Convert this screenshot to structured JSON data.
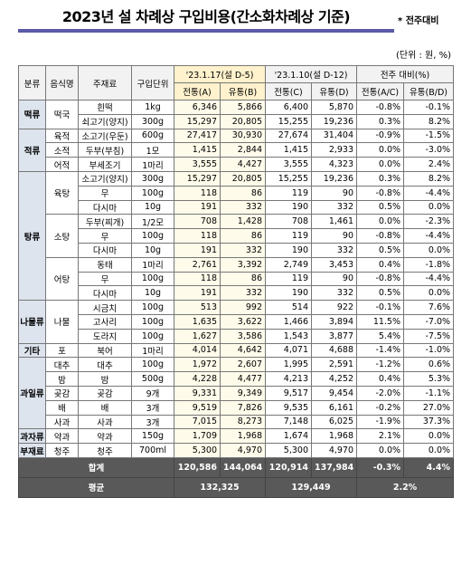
{
  "header": {
    "title": "2023년 설 차례상 구입비용(간소화차례상 기준)",
    "note": "* 전주대비",
    "unit": "(단위 : 원, %)"
  },
  "table": {
    "columns": {
      "category": "분류",
      "food": "음식명",
      "ingredient": "주재료",
      "unit": "구입단위",
      "period1": "'23.1.17(설 D-5)",
      "period2": "'23.1.10(설 D-12)",
      "change": "전주 대비(%)",
      "sub": [
        "전통(A)",
        "유통(B)",
        "전통(C)",
        "유통(D)",
        "전통(A/C)",
        "유통(B/D)"
      ]
    },
    "groups": [
      {
        "category": "떡류",
        "foods": [
          {
            "name": "떡국",
            "items": [
              {
                "ingredient": "흰떡",
                "unit": "1kg",
                "cells": [
                  "6,346",
                  "5,866",
                  "6,400",
                  "5,870",
                  "-0.8%",
                  "-0.1%"
                ]
              },
              {
                "ingredient": "쇠고기(양지)",
                "unit": "300g",
                "cells": [
                  "15,297",
                  "20,805",
                  "15,255",
                  "19,236",
                  "0.3%",
                  "8.2%"
                ]
              }
            ]
          }
        ]
      },
      {
        "category": "적류",
        "foods": [
          {
            "name": "육적",
            "items": [
              {
                "ingredient": "소고기(우둔)",
                "unit": "600g",
                "cells": [
                  "27,417",
                  "30,930",
                  "27,674",
                  "31,404",
                  "-0.9%",
                  "-1.5%"
                ]
              }
            ]
          },
          {
            "name": "소적",
            "items": [
              {
                "ingredient": "두부(부침)",
                "unit": "1모",
                "cells": [
                  "1,415",
                  "2,844",
                  "1,415",
                  "2,933",
                  "0.0%",
                  "-3.0%"
                ]
              }
            ]
          },
          {
            "name": "어적",
            "items": [
              {
                "ingredient": "부세조기",
                "unit": "1마리",
                "cells": [
                  "3,555",
                  "4,427",
                  "3,555",
                  "4,323",
                  "0.0%",
                  "2.4%"
                ]
              }
            ]
          }
        ]
      },
      {
        "category": "탕류",
        "foods": [
          {
            "name": "육탕",
            "items": [
              {
                "ingredient": "소고기(양지)",
                "unit": "300g",
                "cells": [
                  "15,297",
                  "20,805",
                  "15,255",
                  "19,236",
                  "0.3%",
                  "8.2%"
                ]
              },
              {
                "ingredient": "무",
                "unit": "100g",
                "cells": [
                  "118",
                  "86",
                  "119",
                  "90",
                  "-0.8%",
                  "-4.4%"
                ]
              },
              {
                "ingredient": "다시마",
                "unit": "10g",
                "cells": [
                  "191",
                  "332",
                  "190",
                  "332",
                  "0.5%",
                  "0.0%"
                ]
              }
            ]
          },
          {
            "name": "소탕",
            "items": [
              {
                "ingredient": "두부(찌개)",
                "unit": "1/2모",
                "cells": [
                  "708",
                  "1,428",
                  "708",
                  "1,461",
                  "0.0%",
                  "-2.3%"
                ]
              },
              {
                "ingredient": "무",
                "unit": "100g",
                "cells": [
                  "118",
                  "86",
                  "119",
                  "90",
                  "-0.8%",
                  "-4.4%"
                ]
              },
              {
                "ingredient": "다시마",
                "unit": "10g",
                "cells": [
                  "191",
                  "332",
                  "190",
                  "332",
                  "0.5%",
                  "0.0%"
                ]
              }
            ]
          },
          {
            "name": "어탕",
            "items": [
              {
                "ingredient": "동태",
                "unit": "1마리",
                "cells": [
                  "2,761",
                  "3,392",
                  "2,749",
                  "3,453",
                  "0.4%",
                  "-1.8%"
                ]
              },
              {
                "ingredient": "무",
                "unit": "100g",
                "cells": [
                  "118",
                  "86",
                  "119",
                  "90",
                  "-0.8%",
                  "-4.4%"
                ]
              },
              {
                "ingredient": "다시마",
                "unit": "10g",
                "cells": [
                  "191",
                  "332",
                  "190",
                  "332",
                  "0.5%",
                  "0.0%"
                ]
              }
            ]
          }
        ]
      },
      {
        "category": "나물류",
        "foods": [
          {
            "name": "나물",
            "items": [
              {
                "ingredient": "시금치",
                "unit": "100g",
                "cells": [
                  "513",
                  "992",
                  "514",
                  "922",
                  "-0.1%",
                  "7.6%"
                ]
              },
              {
                "ingredient": "고사리",
                "unit": "100g",
                "cells": [
                  "1,635",
                  "3,622",
                  "1,466",
                  "3,894",
                  "11.5%",
                  "-7.0%"
                ]
              },
              {
                "ingredient": "도라지",
                "unit": "100g",
                "cells": [
                  "1,627",
                  "3,586",
                  "1,543",
                  "3,877",
                  "5.4%",
                  "-7.5%"
                ]
              }
            ]
          }
        ]
      },
      {
        "category": "기타",
        "foods": [
          {
            "name": "포",
            "items": [
              {
                "ingredient": "북어",
                "unit": "1마리",
                "cells": [
                  "4,014",
                  "4,642",
                  "4,071",
                  "4,688",
                  "-1.4%",
                  "-1.0%"
                ]
              }
            ]
          }
        ]
      },
      {
        "category": "과일류",
        "foods": [
          {
            "name": "대추",
            "items": [
              {
                "ingredient": "대추",
                "unit": "100g",
                "cells": [
                  "1,972",
                  "2,607",
                  "1,995",
                  "2,591",
                  "-1.2%",
                  "0.6%"
                ]
              }
            ]
          },
          {
            "name": "밤",
            "items": [
              {
                "ingredient": "밤",
                "unit": "500g",
                "cells": [
                  "4,228",
                  "4,477",
                  "4,213",
                  "4,252",
                  "0.4%",
                  "5.3%"
                ]
              }
            ]
          },
          {
            "name": "곶감",
            "items": [
              {
                "ingredient": "곶감",
                "unit": "9개",
                "cells": [
                  "9,331",
                  "9,349",
                  "9,517",
                  "9,454",
                  "-2.0%",
                  "-1.1%"
                ]
              }
            ]
          },
          {
            "name": "배",
            "items": [
              {
                "ingredient": "배",
                "unit": "3개",
                "cells": [
                  "9,519",
                  "7,826",
                  "9,535",
                  "6,161",
                  "-0.2%",
                  "27.0%"
                ]
              }
            ]
          },
          {
            "name": "사과",
            "items": [
              {
                "ingredient": "사과",
                "unit": "3개",
                "cells": [
                  "7,015",
                  "8,273",
                  "7,148",
                  "6,025",
                  "-1.9%",
                  "37.3%"
                ]
              }
            ]
          }
        ]
      },
      {
        "category": "과자류",
        "foods": [
          {
            "name": "약과",
            "items": [
              {
                "ingredient": "약과",
                "unit": "150g",
                "cells": [
                  "1,709",
                  "1,968",
                  "1,674",
                  "1,968",
                  "2.1%",
                  "0.0%"
                ]
              }
            ]
          }
        ]
      },
      {
        "category": "부재료",
        "foods": [
          {
            "name": "청주",
            "items": [
              {
                "ingredient": "청주",
                "unit": "700ml",
                "cells": [
                  "5,300",
                  "4,970",
                  "5,300",
                  "4,970",
                  "0.0%",
                  "0.0%"
                ]
              }
            ]
          }
        ]
      }
    ],
    "total": {
      "label": "합계",
      "cells": [
        "120,586",
        "144,064",
        "120,914",
        "137,984",
        "-0.3%",
        "4.4%"
      ]
    },
    "average": {
      "label": "평균",
      "cells": [
        "132,325",
        "129,449",
        "2.2%"
      ]
    }
  }
}
